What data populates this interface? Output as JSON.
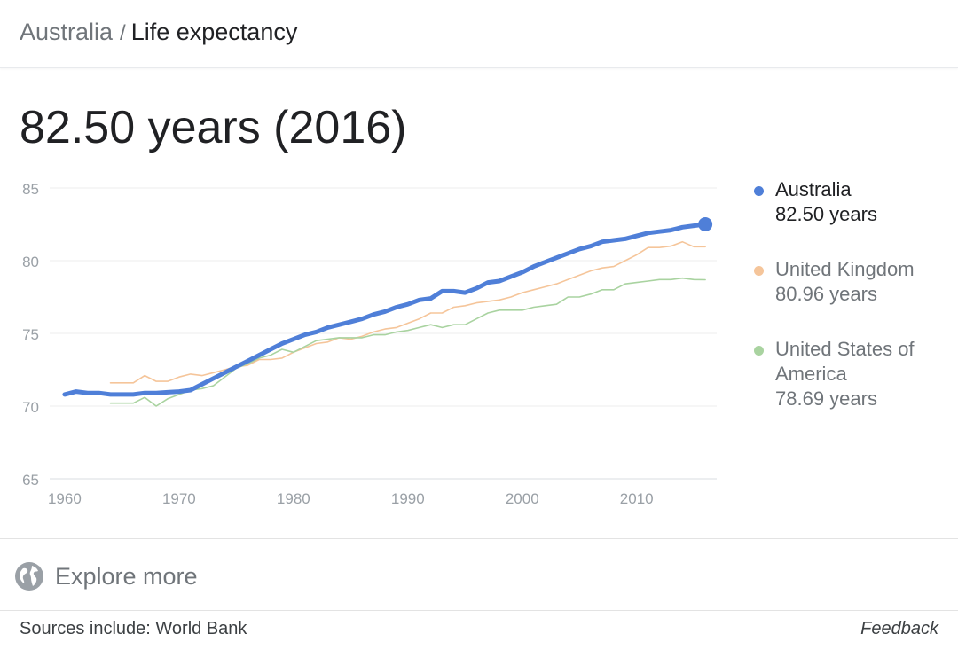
{
  "header": {
    "country": "Australia",
    "separator": "/",
    "topic": "Life expectancy"
  },
  "headline": "82.50 years (2016)",
  "legend": [
    {
      "name": "Australia",
      "value": "82.50 years",
      "color": "#4f7fd8"
    },
    {
      "name": "United Kingdom",
      "value": "80.96 years",
      "color": "#f5c59a"
    },
    {
      "name": "United States of America",
      "value": "78.69 years",
      "color": "#a9d3a0"
    }
  ],
  "footer": {
    "explore_label": "Explore more",
    "explore_icon": "globe-icon",
    "sources": "Sources include: World Bank",
    "feedback": "Feedback"
  },
  "chart_data": {
    "type": "line",
    "title": "",
    "xlabel": "",
    "ylabel": "",
    "xlim": [
      1959,
      2017
    ],
    "ylim": [
      65,
      85
    ],
    "x_ticks": [
      1960,
      1970,
      1980,
      1990,
      2000,
      2010
    ],
    "y_ticks": [
      65,
      70,
      75,
      80,
      85
    ],
    "grid": true,
    "legend_position": "right",
    "series": [
      {
        "name": "Australia",
        "color": "#4f7fd8",
        "emphasis": true,
        "x": [
          1960,
          1961,
          1962,
          1963,
          1964,
          1965,
          1966,
          1967,
          1968,
          1969,
          1970,
          1971,
          1972,
          1973,
          1974,
          1975,
          1976,
          1977,
          1978,
          1979,
          1980,
          1981,
          1982,
          1983,
          1984,
          1985,
          1986,
          1987,
          1988,
          1989,
          1990,
          1991,
          1992,
          1993,
          1994,
          1995,
          1996,
          1997,
          1998,
          1999,
          2000,
          2001,
          2002,
          2003,
          2004,
          2005,
          2006,
          2007,
          2008,
          2009,
          2010,
          2011,
          2012,
          2013,
          2014,
          2015,
          2016
        ],
        "y": [
          70.8,
          71.0,
          70.9,
          70.9,
          70.8,
          70.8,
          70.8,
          70.9,
          70.9,
          70.95,
          71.0,
          71.1,
          71.5,
          71.9,
          72.3,
          72.7,
          73.1,
          73.5,
          73.9,
          74.3,
          74.6,
          74.9,
          75.1,
          75.4,
          75.6,
          75.8,
          76.0,
          76.3,
          76.5,
          76.8,
          77.0,
          77.3,
          77.4,
          77.9,
          77.9,
          77.8,
          78.1,
          78.5,
          78.6,
          78.9,
          79.2,
          79.6,
          79.9,
          80.2,
          80.5,
          80.8,
          81.0,
          81.3,
          81.4,
          81.5,
          81.7,
          81.9,
          82.0,
          82.1,
          82.3,
          82.4,
          82.5
        ]
      },
      {
        "name": "United Kingdom",
        "color": "#f5c59a",
        "emphasis": false,
        "x": [
          1964,
          1965,
          1966,
          1967,
          1968,
          1969,
          1970,
          1971,
          1972,
          1973,
          1974,
          1975,
          1976,
          1977,
          1978,
          1979,
          1980,
          1981,
          1982,
          1983,
          1984,
          1985,
          1986,
          1987,
          1988,
          1989,
          1990,
          1991,
          1992,
          1993,
          1994,
          1995,
          1996,
          1997,
          1998,
          1999,
          2000,
          2001,
          2002,
          2003,
          2004,
          2005,
          2006,
          2007,
          2008,
          2009,
          2010,
          2011,
          2012,
          2013,
          2014,
          2015,
          2016
        ],
        "y": [
          71.6,
          71.6,
          71.6,
          72.1,
          71.7,
          71.7,
          72.0,
          72.2,
          72.1,
          72.3,
          72.5,
          72.7,
          72.8,
          73.2,
          73.2,
          73.3,
          73.7,
          74.0,
          74.3,
          74.4,
          74.7,
          74.6,
          74.8,
          75.1,
          75.3,
          75.4,
          75.7,
          76.0,
          76.4,
          76.4,
          76.8,
          76.9,
          77.1,
          77.2,
          77.3,
          77.5,
          77.8,
          78.0,
          78.2,
          78.4,
          78.7,
          79.0,
          79.3,
          79.5,
          79.6,
          80.0,
          80.4,
          80.9,
          80.9,
          81.0,
          81.3,
          80.96,
          80.96
        ]
      },
      {
        "name": "United States of America",
        "color": "#a9d3a0",
        "emphasis": false,
        "x": [
          1964,
          1965,
          1966,
          1967,
          1968,
          1969,
          1970,
          1971,
          1972,
          1973,
          1974,
          1975,
          1976,
          1977,
          1978,
          1979,
          1980,
          1981,
          1982,
          1983,
          1984,
          1985,
          1986,
          1987,
          1988,
          1989,
          1990,
          1991,
          1992,
          1993,
          1994,
          1995,
          1996,
          1997,
          1998,
          1999,
          2000,
          2001,
          2002,
          2003,
          2004,
          2005,
          2006,
          2007,
          2008,
          2009,
          2010,
          2011,
          2012,
          2013,
          2014,
          2015,
          2016
        ],
        "y": [
          70.2,
          70.2,
          70.2,
          70.6,
          70.0,
          70.5,
          70.8,
          71.1,
          71.2,
          71.4,
          72.0,
          72.6,
          72.9,
          73.3,
          73.5,
          73.9,
          73.7,
          74.1,
          74.5,
          74.6,
          74.7,
          74.7,
          74.7,
          74.9,
          74.9,
          75.1,
          75.2,
          75.4,
          75.6,
          75.4,
          75.6,
          75.6,
          76.0,
          76.4,
          76.6,
          76.6,
          76.6,
          76.8,
          76.9,
          77.0,
          77.5,
          77.5,
          77.7,
          78.0,
          78.0,
          78.4,
          78.5,
          78.6,
          78.7,
          78.7,
          78.8,
          78.7,
          78.69
        ]
      }
    ]
  }
}
